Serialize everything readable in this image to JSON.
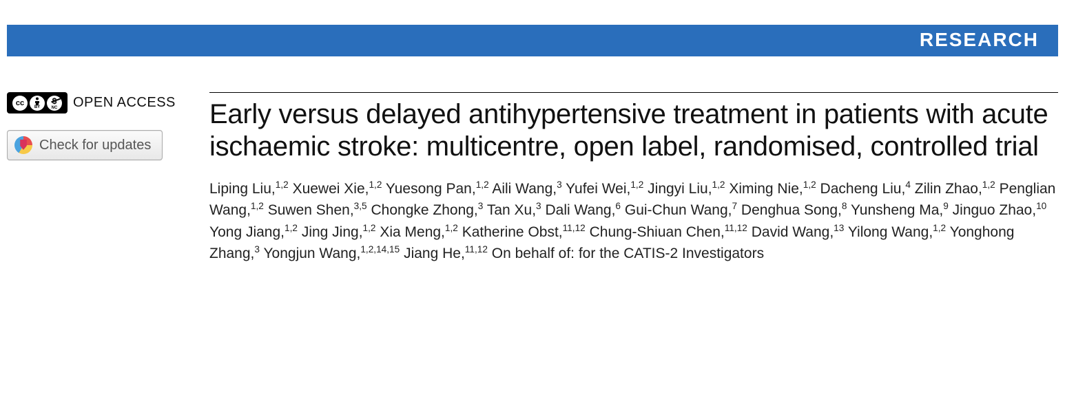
{
  "banner": {
    "label": "RESEARCH",
    "bg": "#2a6ebb",
    "fg": "#ffffff"
  },
  "left": {
    "open_access": "OPEN ACCESS",
    "updates_btn": "Check for updates"
  },
  "article": {
    "title": "Early versus delayed antihypertensive treatment in patients with acute ischaemic stroke: multicentre, open label, randomised, controlled trial",
    "authors": [
      {
        "name": "Liping Liu",
        "aff": "1,2"
      },
      {
        "name": "Xuewei Xie",
        "aff": "1,2"
      },
      {
        "name": "Yuesong Pan",
        "aff": "1,2"
      },
      {
        "name": "Aili Wang",
        "aff": "3"
      },
      {
        "name": "Yufei Wei",
        "aff": "1,2"
      },
      {
        "name": "Jingyi Liu",
        "aff": "1,2"
      },
      {
        "name": "Ximing Nie",
        "aff": "1,2"
      },
      {
        "name": "Dacheng Liu",
        "aff": "4"
      },
      {
        "name": "Zilin Zhao",
        "aff": "1,2"
      },
      {
        "name": "Penglian Wang",
        "aff": "1,2"
      },
      {
        "name": "Suwen Shen",
        "aff": "3,5"
      },
      {
        "name": "Chongke Zhong",
        "aff": "3"
      },
      {
        "name": "Tan Xu",
        "aff": "3"
      },
      {
        "name": "Dali Wang",
        "aff": "6"
      },
      {
        "name": "Gui-Chun Wang",
        "aff": "7"
      },
      {
        "name": "Denghua Song",
        "aff": "8"
      },
      {
        "name": "Yunsheng Ma",
        "aff": "9"
      },
      {
        "name": "Jinguo Zhao",
        "aff": "10"
      },
      {
        "name": "Yong Jiang",
        "aff": "1,2"
      },
      {
        "name": "Jing Jing",
        "aff": "1,2"
      },
      {
        "name": "Xia Meng",
        "aff": "1,2"
      },
      {
        "name": "Katherine Obst",
        "aff": "11,12"
      },
      {
        "name": "Chung-Shiuan Chen",
        "aff": "11,12"
      },
      {
        "name": "David Wang",
        "aff": "13"
      },
      {
        "name": "Yilong Wang",
        "aff": "1,2"
      },
      {
        "name": "Yonghong Zhang",
        "aff": "3"
      },
      {
        "name": "Yongjun Wang",
        "aff": "1,2,14,15"
      },
      {
        "name": "Jiang He",
        "aff": "11,12"
      }
    ],
    "on_behalf": "On behalf of: for the CATIS-2 Investigators"
  }
}
